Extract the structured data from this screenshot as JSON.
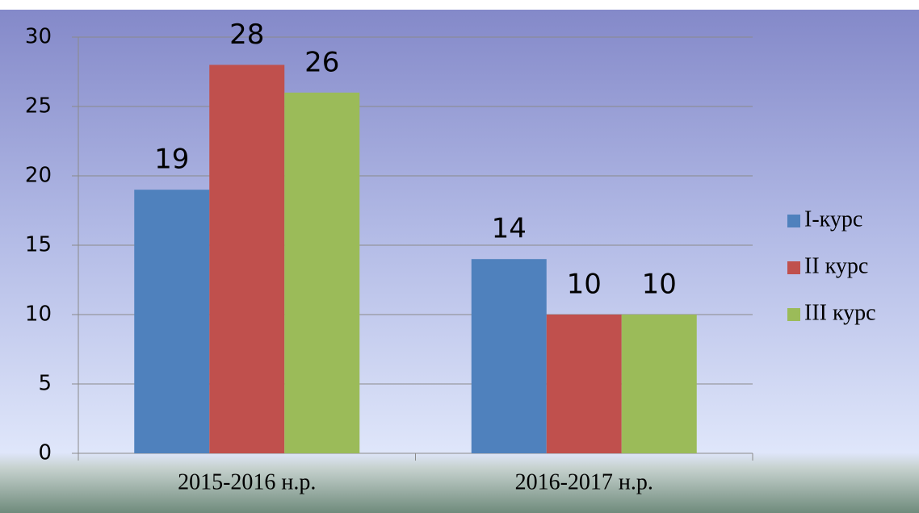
{
  "chart_data": {
    "type": "bar",
    "categories": [
      "2015-2016 н.р.",
      "2016-2017 н.р."
    ],
    "series": [
      {
        "name": "I-курс",
        "color": "#4f81bd",
        "values": [
          19,
          14
        ]
      },
      {
        "name": "II курс",
        "color": "#c0504d",
        "values": [
          28,
          10
        ]
      },
      {
        "name": "III курс",
        "color": "#9bbb59",
        "values": [
          26,
          10
        ]
      }
    ],
    "ylim": [
      0,
      30
    ],
    "yticks": [
      0,
      5,
      10,
      15,
      20,
      25,
      30
    ],
    "grid": true,
    "legend": "right"
  }
}
